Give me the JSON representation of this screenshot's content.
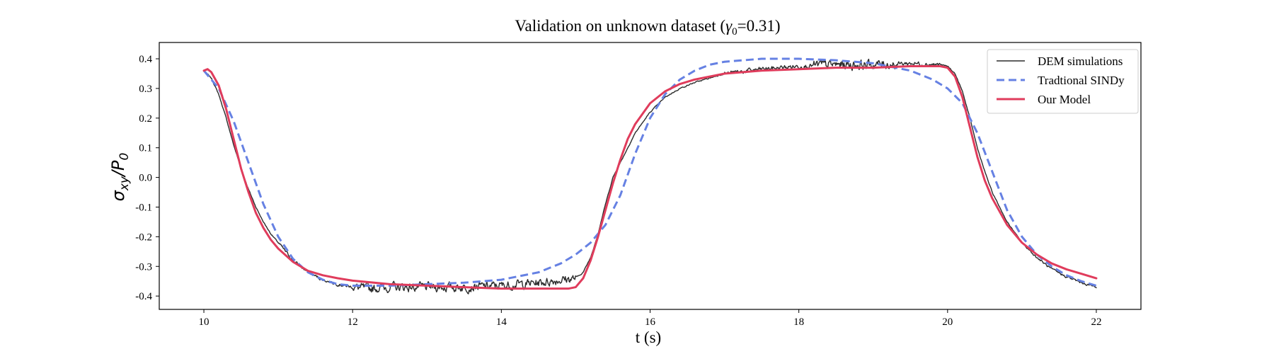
{
  "chart_data": {
    "type": "line",
    "title": "Validation on unknown dataset (",
    "title_symbol": "γ",
    "title_subscript": "0",
    "title_suffix": "=0.31)",
    "xlabel": "t (s)",
    "ylabel_main": "σ",
    "ylabel_sub": "xy",
    "ylabel_slash": "/P",
    "ylabel_sub2": "0",
    "xlim": [
      9.4,
      22.6
    ],
    "ylim": [
      -0.445,
      0.455
    ],
    "xticks": [
      10,
      12,
      14,
      16,
      18,
      20,
      22
    ],
    "xtick_labels": [
      "10",
      "12",
      "14",
      "16",
      "18",
      "20",
      "22"
    ],
    "yticks": [
      0.4,
      0.3,
      0.2,
      0.1,
      0.0,
      -0.1,
      -0.2,
      -0.3,
      -0.4
    ],
    "ytick_labels": [
      "0.4",
      "0.3",
      "0.2",
      "0.1",
      "0.0",
      "-0.1",
      "-0.2",
      "-0.3",
      "-0.4"
    ],
    "legend_position": "top-right",
    "series": [
      {
        "name": "DEM simulations",
        "color": "#2b2b2b",
        "style": "solid",
        "noisy": true,
        "x": [
          10.0,
          10.1,
          10.2,
          10.3,
          10.4,
          10.5,
          10.6,
          10.7,
          10.8,
          10.9,
          11.0,
          11.2,
          11.4,
          11.6,
          11.8,
          12.0,
          12.2,
          12.5,
          13.0,
          13.5,
          14.0,
          14.5,
          14.8,
          15.0,
          15.1,
          15.2,
          15.3,
          15.4,
          15.5,
          15.6,
          15.8,
          16.0,
          16.2,
          16.4,
          16.6,
          16.8,
          17.0,
          17.5,
          18.0,
          18.5,
          19.0,
          19.5,
          19.9,
          20.0,
          20.1,
          20.2,
          20.3,
          20.4,
          20.5,
          20.6,
          20.8,
          21.0,
          21.2,
          21.4,
          21.6,
          21.8,
          22.0
        ],
        "y": [
          0.36,
          0.335,
          0.28,
          0.2,
          0.11,
          0.03,
          -0.04,
          -0.1,
          -0.15,
          -0.19,
          -0.22,
          -0.28,
          -0.32,
          -0.345,
          -0.36,
          -0.37,
          -0.375,
          -0.37,
          -0.37,
          -0.37,
          -0.365,
          -0.355,
          -0.345,
          -0.34,
          -0.32,
          -0.27,
          -0.19,
          -0.09,
          0.0,
          0.05,
          0.15,
          0.22,
          0.27,
          0.3,
          0.32,
          0.335,
          0.35,
          0.365,
          0.375,
          0.38,
          0.38,
          0.385,
          0.38,
          0.375,
          0.35,
          0.29,
          0.2,
          0.1,
          0.02,
          -0.05,
          -0.15,
          -0.22,
          -0.27,
          -0.31,
          -0.335,
          -0.355,
          -0.37
        ]
      },
      {
        "name": "Tradtional SINDy",
        "color": "#6681e3",
        "style": "dashed",
        "noisy": false,
        "x": [
          10.0,
          10.2,
          10.4,
          10.6,
          10.8,
          11.0,
          11.2,
          11.4,
          11.6,
          11.8,
          12.0,
          12.5,
          13.0,
          13.5,
          14.0,
          14.5,
          14.8,
          15.0,
          15.2,
          15.4,
          15.6,
          15.8,
          16.0,
          16.2,
          16.4,
          16.6,
          16.8,
          17.0,
          17.5,
          18.0,
          18.5,
          19.0,
          19.5,
          19.8,
          20.0,
          20.2,
          20.4,
          20.6,
          20.8,
          21.0,
          21.2,
          21.4,
          21.6,
          21.8,
          22.0
        ],
        "y": [
          0.36,
          0.3,
          0.19,
          0.05,
          -0.09,
          -0.2,
          -0.275,
          -0.32,
          -0.345,
          -0.36,
          -0.365,
          -0.365,
          -0.36,
          -0.355,
          -0.345,
          -0.32,
          -0.29,
          -0.26,
          -0.22,
          -0.16,
          -0.06,
          0.08,
          0.2,
          0.28,
          0.33,
          0.36,
          0.38,
          0.39,
          0.4,
          0.4,
          0.395,
          0.385,
          0.36,
          0.33,
          0.3,
          0.25,
          0.15,
          0.02,
          -0.11,
          -0.2,
          -0.26,
          -0.3,
          -0.33,
          -0.35,
          -0.365
        ]
      },
      {
        "name": "Our Model",
        "color": "#e03c5c",
        "style": "solid",
        "noisy": false,
        "x": [
          10.0,
          10.05,
          10.1,
          10.2,
          10.3,
          10.4,
          10.5,
          10.6,
          10.7,
          10.8,
          10.9,
          11.0,
          11.2,
          11.4,
          11.6,
          11.8,
          12.0,
          12.5,
          13.0,
          13.5,
          14.0,
          14.5,
          14.9,
          15.0,
          15.1,
          15.2,
          15.3,
          15.4,
          15.5,
          15.6,
          15.7,
          15.8,
          16.0,
          16.2,
          16.4,
          16.6,
          17.0,
          17.5,
          18.0,
          18.5,
          19.0,
          19.5,
          19.9,
          20.0,
          20.1,
          20.2,
          20.3,
          20.4,
          20.5,
          20.6,
          20.8,
          21.0,
          21.2,
          21.4,
          21.6,
          21.8,
          22.0
        ],
        "y": [
          0.36,
          0.365,
          0.355,
          0.31,
          0.23,
          0.13,
          0.03,
          -0.05,
          -0.12,
          -0.17,
          -0.21,
          -0.24,
          -0.285,
          -0.315,
          -0.33,
          -0.34,
          -0.348,
          -0.36,
          -0.365,
          -0.37,
          -0.375,
          -0.375,
          -0.375,
          -0.37,
          -0.34,
          -0.28,
          -0.2,
          -0.11,
          -0.02,
          0.06,
          0.13,
          0.18,
          0.25,
          0.29,
          0.315,
          0.33,
          0.35,
          0.36,
          0.365,
          0.37,
          0.37,
          0.375,
          0.375,
          0.37,
          0.34,
          0.27,
          0.17,
          0.07,
          -0.01,
          -0.07,
          -0.16,
          -0.22,
          -0.26,
          -0.29,
          -0.31,
          -0.325,
          -0.34
        ]
      }
    ]
  }
}
